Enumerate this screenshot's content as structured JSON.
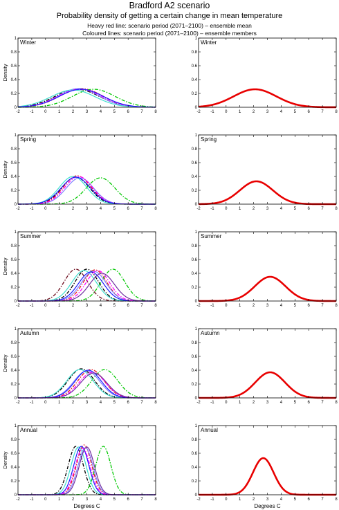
{
  "header": {
    "title": "Bradford A2 scenario",
    "subtitle": "Probability density of getting a certain change in mean temperature",
    "note_mean": "Heavy red line: scenario period (2071–2100) – ensemble mean",
    "note_members": "Coloured lines: scenario period (2071–2100) – ensemble members"
  },
  "chart_data": [
    {
      "type": "line",
      "panel": "members",
      "title": "Winter",
      "ylabel": "Density",
      "xlabel": "",
      "xlim": [
        -2,
        8
      ],
      "ylim": [
        0,
        1
      ],
      "x_ticks": [
        -2,
        -1,
        0,
        1,
        2,
        3,
        4,
        5,
        6,
        7,
        8
      ],
      "y_ticks": [
        0,
        0.2,
        0.4,
        0.6,
        0.8,
        1
      ],
      "series": [
        {
          "color": "#000000",
          "style": "dashdot",
          "mean": 2.3,
          "sd": 1.6,
          "peak": 0.26
        },
        {
          "color": "#e41a1c",
          "style": "dashdot",
          "mean": 2.6,
          "sd": 1.55,
          "peak": 0.27
        },
        {
          "color": "#00c800",
          "style": "dashdot",
          "mean": 3.5,
          "sd": 1.55,
          "peak": 0.26
        },
        {
          "color": "#8080ff",
          "style": "solid",
          "mean": 2.4,
          "sd": 1.5,
          "peak": 0.27
        },
        {
          "color": "#40e0d0",
          "style": "solid",
          "mean": 2.0,
          "sd": 1.6,
          "peak": 0.25
        },
        {
          "color": "#ff00ff",
          "style": "dashdot",
          "mean": 2.5,
          "sd": 1.6,
          "peak": 0.26
        },
        {
          "color": "#1a1aff",
          "style": "solid",
          "mean": 2.6,
          "sd": 1.6,
          "peak": 0.26
        }
      ]
    },
    {
      "type": "line",
      "panel": "mean",
      "title": "Winter",
      "ylabel": "",
      "xlabel": "",
      "xlim": [
        -2,
        8
      ],
      "ylim": [
        0,
        1
      ],
      "x_ticks": [
        -2,
        -1,
        0,
        1,
        2,
        3,
        4,
        5,
        6,
        7,
        8
      ],
      "y_ticks": [
        0,
        0.2,
        0.4,
        0.6,
        0.8,
        1
      ],
      "series": [
        {
          "color": "#e80000",
          "style": "heavy",
          "mean": 2.1,
          "sd": 1.55,
          "peak": 0.26
        }
      ]
    },
    {
      "type": "line",
      "panel": "members",
      "title": "Spring",
      "ylabel": "Density",
      "xlabel": "",
      "xlim": [
        -2,
        8
      ],
      "ylim": [
        0,
        1
      ],
      "x_ticks": [
        -2,
        -1,
        0,
        1,
        2,
        3,
        4,
        5,
        6,
        7,
        8
      ],
      "y_ticks": [
        0,
        0.2,
        0.4,
        0.6,
        0.8,
        1
      ],
      "series": [
        {
          "color": "#000000",
          "style": "dashdot",
          "mean": 2.2,
          "sd": 1.0,
          "peak": 0.39
        },
        {
          "color": "#e41a1c",
          "style": "dashdot",
          "mean": 2.3,
          "sd": 1.0,
          "peak": 0.41
        },
        {
          "color": "#00c800",
          "style": "dashdot",
          "mean": 4.0,
          "sd": 1.05,
          "peak": 0.38
        },
        {
          "color": "#40e0d0",
          "style": "solid",
          "mean": 2.0,
          "sd": 1.0,
          "peak": 0.4
        },
        {
          "color": "#8080ff",
          "style": "solid",
          "mean": 2.5,
          "sd": 1.0,
          "peak": 0.38
        },
        {
          "color": "#ff00ff",
          "style": "dashdot",
          "mean": 2.4,
          "sd": 1.0,
          "peak": 0.4
        },
        {
          "color": "#1a1aff",
          "style": "solid",
          "mean": 2.2,
          "sd": 1.05,
          "peak": 0.39
        }
      ]
    },
    {
      "type": "line",
      "panel": "mean",
      "title": "Spring",
      "ylabel": "",
      "xlabel": "",
      "xlim": [
        -2,
        8
      ],
      "ylim": [
        0,
        1
      ],
      "x_ticks": [
        -2,
        -1,
        0,
        1,
        2,
        3,
        4,
        5,
        6,
        7,
        8
      ],
      "y_ticks": [
        0,
        0.2,
        0.4,
        0.6,
        0.8,
        1
      ],
      "series": [
        {
          "color": "#e80000",
          "style": "heavy",
          "mean": 2.2,
          "sd": 1.2,
          "peak": 0.33
        }
      ]
    },
    {
      "type": "line",
      "panel": "members",
      "title": "Summer",
      "ylabel": "Density",
      "xlabel": "",
      "xlim": [
        -2,
        8
      ],
      "ylim": [
        0,
        1
      ],
      "x_ticks": [
        -2,
        -1,
        0,
        1,
        2,
        3,
        4,
        5,
        6,
        7,
        8
      ],
      "y_ticks": [
        0,
        0.2,
        0.4,
        0.6,
        0.8,
        1
      ],
      "series": [
        {
          "color": "#6b0a1a",
          "style": "dashdot",
          "mean": 2.2,
          "sd": 0.85,
          "peak": 0.46
        },
        {
          "color": "#000000",
          "style": "dashdot",
          "mean": 3.0,
          "sd": 0.85,
          "peak": 0.46
        },
        {
          "color": "#e41a1c",
          "style": "dashdot",
          "mean": 3.6,
          "sd": 0.85,
          "peak": 0.45
        },
        {
          "color": "#00c800",
          "style": "dashdot",
          "mean": 4.9,
          "sd": 0.85,
          "peak": 0.46
        },
        {
          "color": "#40e0d0",
          "style": "solid",
          "mean": 2.8,
          "sd": 0.9,
          "peak": 0.44
        },
        {
          "color": "#8080ff",
          "style": "solid",
          "mean": 3.5,
          "sd": 0.9,
          "peak": 0.43
        },
        {
          "color": "#1a1aff",
          "style": "solid",
          "mean": 3.3,
          "sd": 0.9,
          "peak": 0.42
        },
        {
          "color": "#ff00ff",
          "style": "dashdot",
          "mean": 3.8,
          "sd": 0.85,
          "peak": 0.44
        },
        {
          "color": "#7030a0",
          "style": "solid",
          "mean": 4.1,
          "sd": 0.9,
          "peak": 0.4
        }
      ]
    },
    {
      "type": "line",
      "panel": "mean",
      "title": "Summer",
      "ylabel": "",
      "xlabel": "",
      "xlim": [
        -2,
        8
      ],
      "ylim": [
        0,
        1
      ],
      "x_ticks": [
        -2,
        -1,
        0,
        1,
        2,
        3,
        4,
        5,
        6,
        7,
        8
      ],
      "y_ticks": [
        0,
        0.2,
        0.4,
        0.6,
        0.8,
        1
      ],
      "series": [
        {
          "color": "#e80000",
          "style": "heavy",
          "mean": 3.2,
          "sd": 1.12,
          "peak": 0.35
        }
      ]
    },
    {
      "type": "line",
      "panel": "members",
      "title": "Autumn",
      "ylabel": "Density",
      "xlabel": "",
      "xlim": [
        -2,
        8
      ],
      "ylim": [
        0,
        1
      ],
      "x_ticks": [
        -2,
        -1,
        0,
        1,
        2,
        3,
        4,
        5,
        6,
        7,
        8
      ],
      "y_ticks": [
        0,
        0.2,
        0.4,
        0.6,
        0.8,
        1
      ],
      "series": [
        {
          "color": "#000000",
          "style": "dashdot",
          "mean": 2.6,
          "sd": 0.95,
          "peak": 0.42
        },
        {
          "color": "#e41a1c",
          "style": "dashdot",
          "mean": 3.3,
          "sd": 0.95,
          "peak": 0.41
        },
        {
          "color": "#00c800",
          "style": "dashdot",
          "mean": 4.3,
          "sd": 0.95,
          "peak": 0.41
        },
        {
          "color": "#40e0d0",
          "style": "solid",
          "mean": 2.5,
          "sd": 0.95,
          "peak": 0.41
        },
        {
          "color": "#8080ff",
          "style": "solid",
          "mean": 3.0,
          "sd": 0.95,
          "peak": 0.39
        },
        {
          "color": "#1a1aff",
          "style": "solid",
          "mean": 3.1,
          "sd": 0.95,
          "peak": 0.4
        },
        {
          "color": "#ff00ff",
          "style": "dashdot",
          "mean": 3.4,
          "sd": 0.95,
          "peak": 0.37
        },
        {
          "color": "#7030a0",
          "style": "solid",
          "mean": 3.5,
          "sd": 0.95,
          "peak": 0.36
        }
      ]
    },
    {
      "type": "line",
      "panel": "mean",
      "title": "Autumn",
      "ylabel": "",
      "xlabel": "",
      "xlim": [
        -2,
        8
      ],
      "ylim": [
        0,
        1
      ],
      "x_ticks": [
        -2,
        -1,
        0,
        1,
        2,
        3,
        4,
        5,
        6,
        7,
        8
      ],
      "y_ticks": [
        0,
        0.2,
        0.4,
        0.6,
        0.8,
        1
      ],
      "series": [
        {
          "color": "#e80000",
          "style": "heavy",
          "mean": 3.2,
          "sd": 1.08,
          "peak": 0.37
        }
      ]
    },
    {
      "type": "line",
      "panel": "members",
      "title": "Annual",
      "ylabel": "Density",
      "xlabel": "Degrees C",
      "xlim": [
        -2,
        8
      ],
      "ylim": [
        0,
        1
      ],
      "x_ticks": [
        -2,
        -1,
        0,
        1,
        2,
        3,
        4,
        5,
        6,
        7,
        8
      ],
      "y_ticks": [
        0,
        0.2,
        0.4,
        0.6,
        0.8,
        1
      ],
      "series": [
        {
          "color": "#000000",
          "style": "dashdot",
          "mean": 2.2,
          "sd": 0.55,
          "peak": 0.7
        },
        {
          "color": "#e41a1c",
          "style": "dashdot",
          "mean": 2.8,
          "sd": 0.55,
          "peak": 0.72
        },
        {
          "color": "#00c800",
          "style": "dashdot",
          "mean": 4.2,
          "sd": 0.55,
          "peak": 0.7
        },
        {
          "color": "#40e0d0",
          "style": "solid",
          "mean": 2.4,
          "sd": 0.55,
          "peak": 0.69
        },
        {
          "color": "#8080ff",
          "style": "solid",
          "mean": 2.9,
          "sd": 0.55,
          "peak": 0.68
        },
        {
          "color": "#1a1aff",
          "style": "solid",
          "mean": 2.6,
          "sd": 0.55,
          "peak": 0.7
        },
        {
          "color": "#ff00ff",
          "style": "dashdot",
          "mean": 2.7,
          "sd": 0.55,
          "peak": 0.67
        },
        {
          "color": "#7030a0",
          "style": "solid",
          "mean": 3.0,
          "sd": 0.55,
          "peak": 0.69
        }
      ]
    },
    {
      "type": "line",
      "panel": "mean",
      "title": "Annual",
      "ylabel": "",
      "xlabel": "Degrees C",
      "xlim": [
        -2,
        8
      ],
      "ylim": [
        0,
        1
      ],
      "x_ticks": [
        -2,
        -1,
        0,
        1,
        2,
        3,
        4,
        5,
        6,
        7,
        8
      ],
      "y_ticks": [
        0,
        0.2,
        0.4,
        0.6,
        0.8,
        1
      ],
      "series": [
        {
          "color": "#e80000",
          "style": "heavy",
          "mean": 2.7,
          "sd": 0.75,
          "peak": 0.53
        }
      ]
    }
  ]
}
